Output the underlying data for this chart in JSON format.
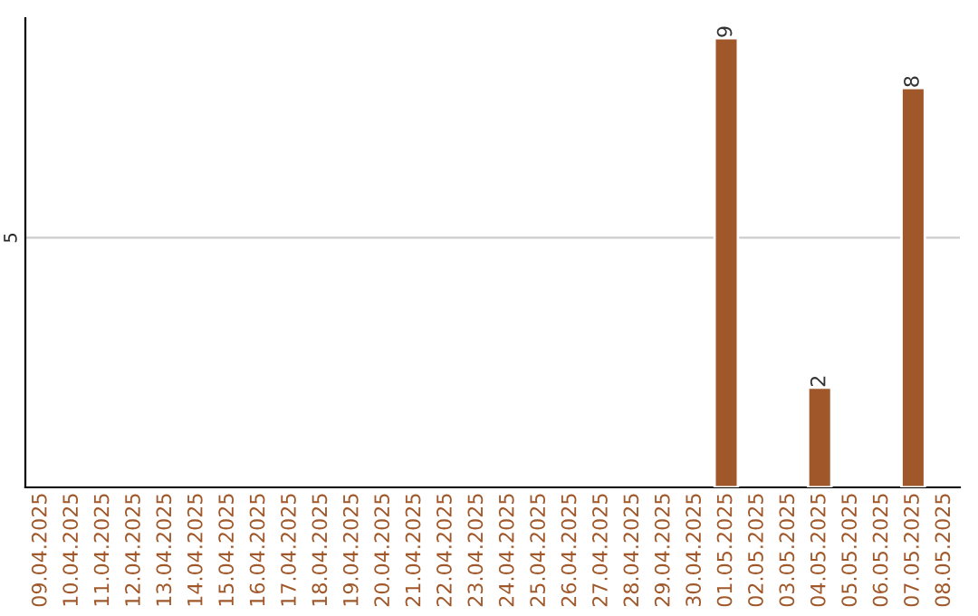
{
  "chart_data": {
    "type": "bar",
    "categories": [
      "09.04.2025",
      "10.04.2025",
      "11.04.2025",
      "12.04.2025",
      "13.04.2025",
      "14.04.2025",
      "15.04.2025",
      "16.04.2025",
      "17.04.2025",
      "18.04.2025",
      "19.04.2025",
      "20.04.2025",
      "21.04.2025",
      "22.04.2025",
      "23.04.2025",
      "24.04.2025",
      "25.04.2025",
      "26.04.2025",
      "27.04.2025",
      "28.04.2025",
      "29.04.2025",
      "30.04.2025",
      "01.05.2025",
      "02.05.2025",
      "03.05.2025",
      "04.05.2025",
      "05.05.2025",
      "06.05.2025",
      "07.05.2025",
      "08.05.2025"
    ],
    "values": [
      null,
      null,
      null,
      null,
      null,
      null,
      null,
      null,
      null,
      null,
      null,
      null,
      null,
      null,
      null,
      null,
      null,
      null,
      null,
      null,
      null,
      null,
      9,
      null,
      null,
      2,
      null,
      null,
      8,
      null
    ],
    "data_labels": true,
    "color": "#a0582a",
    "ylim": [
      0,
      9.4
    ],
    "yticks": [
      5
    ],
    "grid": "y"
  }
}
